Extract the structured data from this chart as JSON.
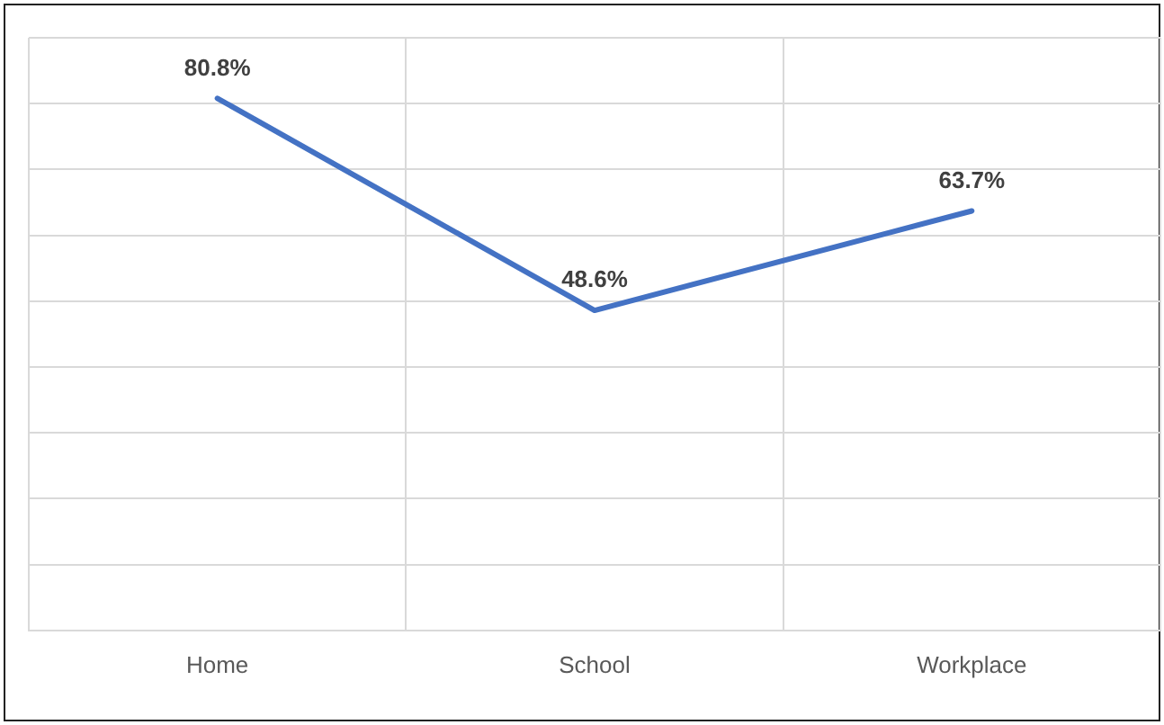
{
  "chart_data": {
    "type": "line",
    "categories": [
      "Home",
      "School",
      "Workplace"
    ],
    "series": [
      {
        "color": "#4472c4",
        "values": [
          80.8,
          48.6,
          63.7
        ],
        "value_labels": [
          "80.8%",
          "48.6%",
          "63.7%"
        ]
      }
    ],
    "ylim": [
      0,
      90
    ],
    "yticks": [
      {
        "value": 0,
        "label": null
      },
      {
        "value": 10,
        "label": null
      },
      {
        "value": 20,
        "label": null
      },
      {
        "value": 30,
        "label": null
      },
      {
        "value": 40,
        "label": null
      },
      {
        "value": 50,
        "label": null
      },
      {
        "value": 60,
        "label": null
      },
      {
        "value": 70,
        "label": null
      },
      {
        "value": 80,
        "label": null
      },
      {
        "value": 90,
        "label": null
      }
    ],
    "grid": true,
    "legend": false,
    "marker": "none",
    "line_style": "solid",
    "tick_labels": "x"
  }
}
